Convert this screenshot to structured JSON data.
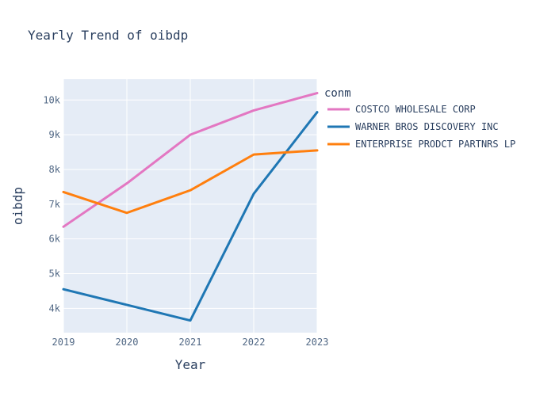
{
  "chart_data": {
    "type": "line",
    "title": "Yearly Trend of oibdp",
    "xlabel": "Year",
    "ylabel": "oibdp",
    "x": [
      2019,
      2020,
      2021,
      2022,
      2023
    ],
    "x_ticks": [
      "2019",
      "2020",
      "2021",
      "2022",
      "2023"
    ],
    "xlim": [
      2019,
      2023
    ],
    "ylim": [
      3300,
      10600
    ],
    "y_ticks": [
      4000,
      5000,
      6000,
      7000,
      8000,
      9000,
      10000
    ],
    "y_tick_labels": [
      "4k",
      "5k",
      "6k",
      "7k",
      "8k",
      "9k",
      "10k"
    ],
    "grid": true,
    "legend_title": "conm",
    "legend_position": "right",
    "series": [
      {
        "name": "COSTCO WHOLESALE CORP",
        "color": "#e377c2",
        "values": [
          6350,
          7600,
          9000,
          9700,
          10200
        ]
      },
      {
        "name": "WARNER BROS DISCOVERY INC",
        "color": "#1f77b4",
        "values": [
          4550,
          4100,
          3650,
          7300,
          9650
        ]
      },
      {
        "name": "ENTERPRISE PRODCT PARTNRS LP",
        "color": "#ff7f0e",
        "values": [
          7350,
          6750,
          7400,
          8430,
          8550
        ]
      }
    ]
  }
}
